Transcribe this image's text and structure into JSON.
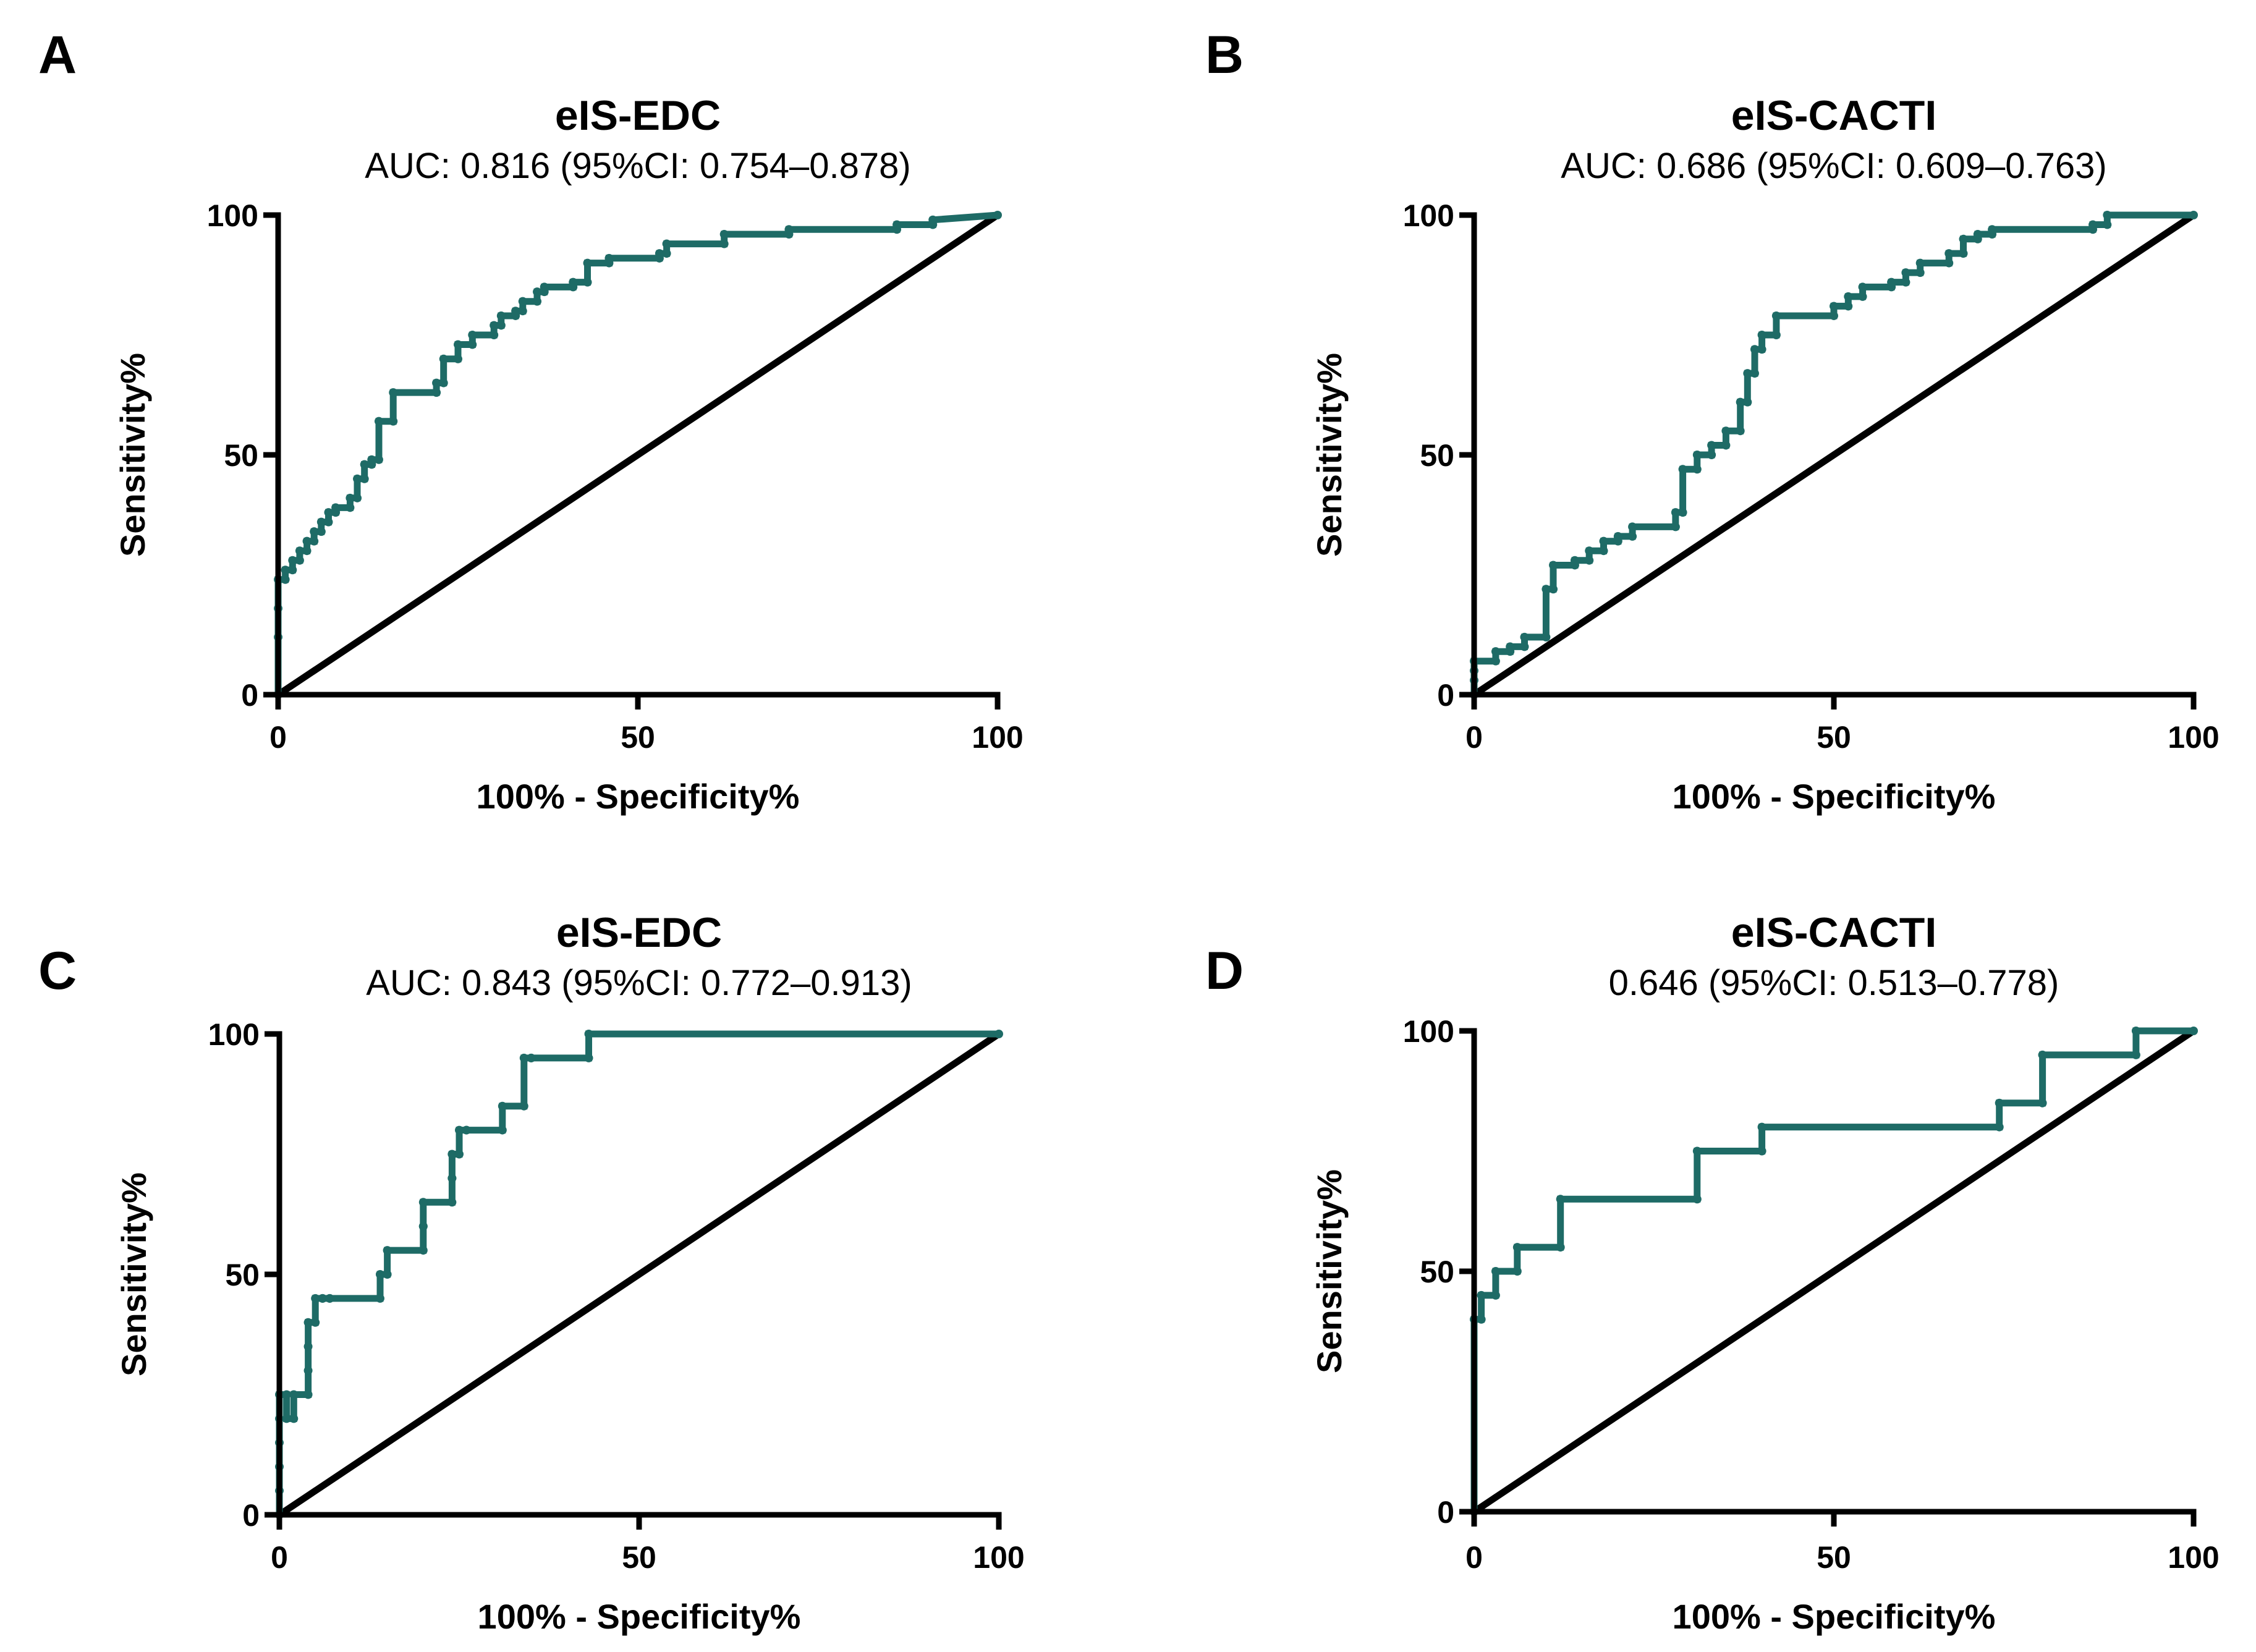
{
  "colors": {
    "roc": "#1e6b66",
    "axis": "#000000",
    "reference": "#000000",
    "background": "#ffffff"
  },
  "chart_data": [
    {
      "panel": "A",
      "type": "line",
      "title": "eIS-EDC",
      "subtitle": "AUC: 0.816 (95%CI: 0.754–0.878)",
      "xlabel": "100% - Specificity%",
      "ylabel": "Sensitivity%",
      "xlim": [
        0,
        100
      ],
      "ylim": [
        0,
        100
      ],
      "xticks": [
        "0",
        "50",
        "100"
      ],
      "yticks": [
        "0",
        "50",
        "100"
      ],
      "grid": false,
      "series": [
        {
          "name": "ROC",
          "x": [
            0,
            0,
            0,
            0,
            1,
            1,
            2,
            2,
            3,
            3,
            4,
            4,
            5,
            5,
            6,
            6,
            7,
            7,
            8,
            8,
            10,
            10,
            11,
            11,
            12,
            12,
            13,
            13,
            14,
            14,
            16,
            16,
            22,
            22,
            23,
            23,
            25,
            25,
            27,
            27,
            30,
            30,
            31,
            31,
            33,
            33,
            34,
            34,
            36,
            36,
            37,
            37,
            41,
            41,
            43,
            43,
            46,
            46,
            53,
            53,
            54,
            54,
            62,
            62,
            71,
            71,
            86,
            86,
            91,
            91,
            100
          ],
          "y": [
            0,
            12,
            18,
            24,
            24,
            26,
            26,
            28,
            28,
            30,
            30,
            32,
            32,
            34,
            34,
            36,
            36,
            38,
            38,
            39,
            39,
            41,
            41,
            45,
            45,
            48,
            48,
            49,
            49,
            57,
            57,
            63,
            63,
            65,
            65,
            70,
            70,
            73,
            73,
            75,
            75,
            77,
            77,
            79,
            79,
            80,
            80,
            82,
            82,
            84,
            84,
            85,
            85,
            86,
            86,
            90,
            90,
            91,
            91,
            92,
            92,
            94,
            94,
            96,
            96,
            97,
            97,
            98,
            98,
            99,
            100
          ]
        },
        {
          "name": "Reference",
          "x": [
            0,
            100
          ],
          "y": [
            0,
            100
          ]
        }
      ]
    },
    {
      "panel": "B",
      "type": "line",
      "title": "eIS-CACTI",
      "subtitle": "AUC: 0.686 (95%CI: 0.609–0.763)",
      "xlabel": "100% - Specificity%",
      "ylabel": "Sensitivity%",
      "xlim": [
        0,
        100
      ],
      "ylim": [
        0,
        100
      ],
      "xticks": [
        "0",
        "50",
        "100"
      ],
      "yticks": [
        "0",
        "50",
        "100"
      ],
      "grid": false,
      "series": [
        {
          "name": "ROC",
          "x": [
            0,
            0,
            0,
            0,
            3,
            3,
            5,
            5,
            7,
            7,
            10,
            10,
            11,
            11,
            14,
            14,
            16,
            16,
            18,
            18,
            20,
            20,
            22,
            22,
            28,
            28,
            29,
            29,
            31,
            31,
            33,
            33,
            35,
            35,
            37,
            37,
            38,
            38,
            39,
            39,
            40,
            40,
            42,
            42,
            50,
            50,
            52,
            52,
            54,
            54,
            58,
            58,
            60,
            60,
            62,
            62,
            66,
            66,
            68,
            68,
            70,
            70,
            72,
            72,
            86,
            86,
            88,
            88,
            100
          ],
          "y": [
            0,
            3,
            5,
            7,
            7,
            9,
            9,
            10,
            10,
            12,
            12,
            22,
            22,
            27,
            27,
            28,
            28,
            30,
            30,
            32,
            32,
            33,
            33,
            35,
            35,
            38,
            38,
            47,
            47,
            50,
            50,
            52,
            52,
            55,
            55,
            61,
            61,
            67,
            67,
            72,
            72,
            75,
            75,
            79,
            79,
            81,
            81,
            83,
            83,
            85,
            85,
            86,
            86,
            88,
            88,
            90,
            90,
            92,
            92,
            95,
            95,
            96,
            96,
            97,
            97,
            98,
            98,
            100,
            100
          ]
        },
        {
          "name": "Reference",
          "x": [
            0,
            100
          ],
          "y": [
            0,
            100
          ]
        }
      ]
    },
    {
      "panel": "C",
      "type": "line",
      "title": "eIS-EDC",
      "subtitle": "AUC: 0.843 (95%CI: 0.772–0.913)",
      "xlabel": "100% - Specificity%",
      "ylabel": "Sensitivity%",
      "xlim": [
        0,
        100
      ],
      "ylim": [
        0,
        100
      ],
      "xticks": [
        "0",
        "50",
        "100"
      ],
      "yticks": [
        "0",
        "50",
        "100"
      ],
      "grid": false,
      "series": [
        {
          "name": "ROC",
          "x": [
            0,
            0,
            0,
            0,
            0,
            0,
            1,
            1,
            2,
            2,
            4,
            4,
            4,
            4,
            5,
            5,
            6,
            6,
            7,
            7,
            14,
            14,
            15,
            15,
            20,
            20,
            20,
            20,
            24,
            24,
            24,
            24,
            25,
            25,
            26,
            26,
            31,
            31,
            34,
            34,
            35,
            35,
            43,
            43,
            100
          ],
          "y": [
            0,
            5,
            10,
            15,
            20,
            25,
            25,
            20,
            20,
            25,
            25,
            30,
            35,
            40,
            40,
            45,
            45,
            45,
            45,
            45,
            45,
            50,
            50,
            55,
            55,
            60,
            60,
            65,
            65,
            70,
            70,
            75,
            75,
            80,
            80,
            80,
            80,
            85,
            85,
            95,
            95,
            95,
            95,
            100,
            100
          ]
        },
        {
          "name": "Reference",
          "x": [
            0,
            100
          ],
          "y": [
            0,
            100
          ]
        }
      ]
    },
    {
      "panel": "D",
      "type": "line",
      "title": "eIS-CACTI",
      "subtitle": "0.646 (95%CI: 0.513–0.778)",
      "xlabel": "100% - Specificity%",
      "ylabel": "Sensitivity%",
      "xlim": [
        0,
        100
      ],
      "ylim": [
        0,
        100
      ],
      "xticks": [
        "0",
        "50",
        "100"
      ],
      "yticks": [
        "0",
        "50",
        "100"
      ],
      "grid": false,
      "series": [
        {
          "name": "ROC",
          "x": [
            0,
            0,
            0,
            1,
            1,
            3,
            3,
            6,
            6,
            12,
            12,
            31,
            31,
            40,
            40,
            73,
            73,
            79,
            79,
            92,
            92,
            100
          ],
          "y": [
            0,
            40,
            40,
            40,
            45,
            45,
            50,
            50,
            55,
            55,
            65,
            65,
            75,
            75,
            80,
            80,
            85,
            85,
            95,
            95,
            100,
            100
          ]
        },
        {
          "name": "Reference",
          "x": [
            0,
            100
          ],
          "y": [
            0,
            100
          ]
        }
      ]
    }
  ]
}
